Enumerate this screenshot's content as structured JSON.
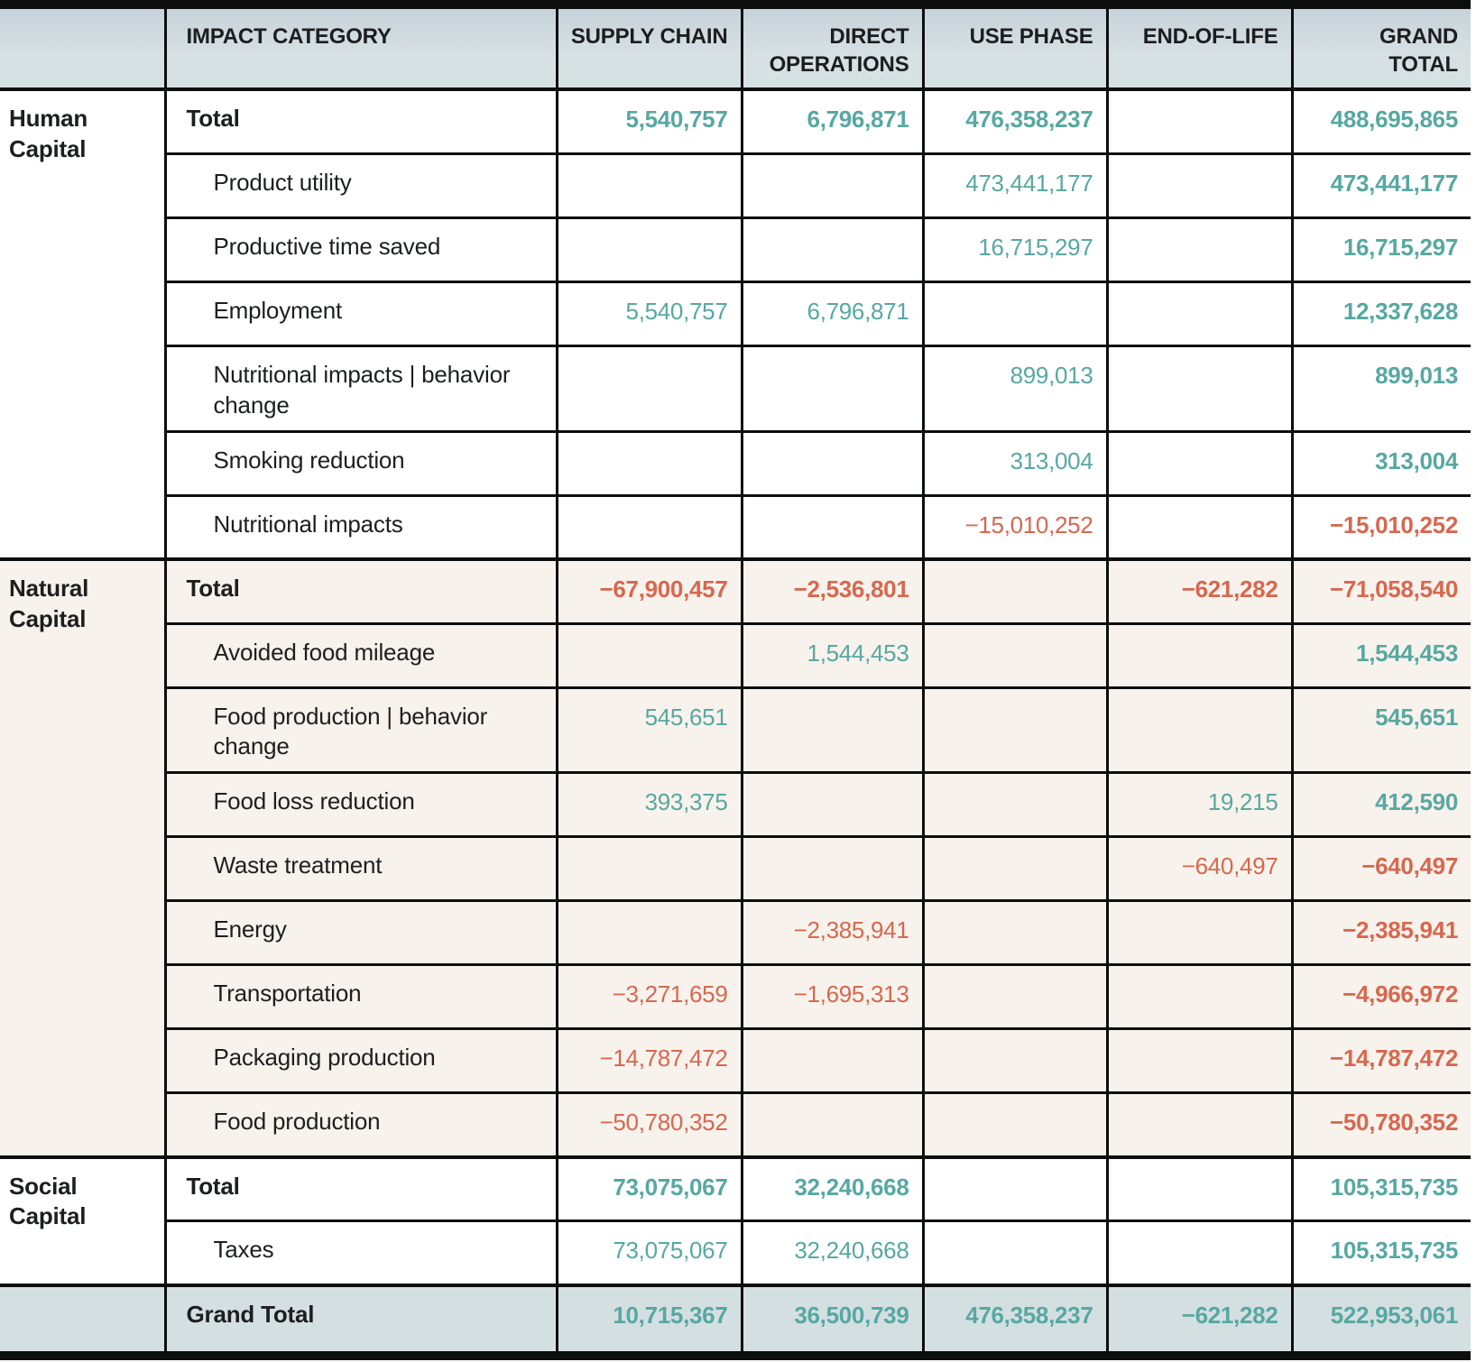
{
  "colors": {
    "positive_value": "#57a8a1",
    "negative_value": "#d6684f",
    "header_bg": "#d2dee2",
    "section_cream_bg": "#f8f2ec",
    "grand_total_row_bg": "#d4dfe2",
    "text": "#1d1f1f",
    "border": "#0d0e0e"
  },
  "table": {
    "columns": [
      "IMPACT CATEGORY",
      "SUPPLY CHAIN",
      "DIRECT OPERATIONS",
      "USE PHASE",
      "END-OF-LIFE",
      "GRAND TOTAL"
    ],
    "sections": [
      {
        "name": "Human Capital",
        "theme": "light",
        "rows": [
          {
            "label": "Total",
            "total": true,
            "values": [
              "5,540,757",
              "6,796,871",
              "476,358,237",
              "",
              "488,695,865"
            ]
          },
          {
            "label": "Product utility",
            "values": [
              "",
              "",
              "473,441,177",
              "",
              "473,441,177"
            ]
          },
          {
            "label": "Productive time saved",
            "values": [
              "",
              "",
              "16,715,297",
              "",
              "16,715,297"
            ]
          },
          {
            "label": "Employment",
            "values": [
              "5,540,757",
              "6,796,871",
              "",
              "",
              "12,337,628"
            ]
          },
          {
            "label": "Nutritional impacts | behavior change",
            "values": [
              "",
              "",
              "899,013",
              "",
              "899,013"
            ]
          },
          {
            "label": "Smoking reduction",
            "values": [
              "",
              "",
              "313,004",
              "",
              "313,004"
            ]
          },
          {
            "label": "Nutritional impacts",
            "values": [
              "",
              "",
              "−15,010,252",
              "",
              "−15,010,252"
            ]
          }
        ]
      },
      {
        "name": "Natural Capital",
        "theme": "cream",
        "rows": [
          {
            "label": "Total",
            "total": true,
            "values": [
              "−67,900,457",
              "−2,536,801",
              "",
              "−621,282",
              "−71,058,540"
            ]
          },
          {
            "label": "Avoided food mileage",
            "values": [
              "",
              "1,544,453",
              "",
              "",
              "1,544,453"
            ]
          },
          {
            "label": "Food production | behavior change",
            "values": [
              "545,651",
              "",
              "",
              "",
              "545,651"
            ]
          },
          {
            "label": "Food loss reduction",
            "values": [
              "393,375",
              "",
              "",
              "19,215",
              "412,590"
            ]
          },
          {
            "label": "Waste treatment",
            "values": [
              "",
              "",
              "",
              "−640,497",
              "−640,497"
            ]
          },
          {
            "label": "Energy",
            "values": [
              "",
              "−2,385,941",
              "",
              "",
              "−2,385,941"
            ]
          },
          {
            "label": "Transportation",
            "values": [
              "−3,271,659",
              "−1,695,313",
              "",
              "",
              "−4,966,972"
            ]
          },
          {
            "label": "Packaging production",
            "values": [
              "−14,787,472",
              "",
              "",
              "",
              "−14,787,472"
            ]
          },
          {
            "label": "Food production",
            "values": [
              "−50,780,352",
              "",
              "",
              "",
              "−50,780,352"
            ]
          }
        ]
      },
      {
        "name": "Social Capital",
        "theme": "light",
        "rows": [
          {
            "label": "Total",
            "total": true,
            "values": [
              "73,075,067",
              "32,240,668",
              "",
              "",
              "105,315,735"
            ]
          },
          {
            "label": "Taxes",
            "values": [
              "73,075,067",
              "32,240,668",
              "",
              "",
              "105,315,735"
            ]
          }
        ]
      }
    ],
    "grand_total": {
      "label": "Grand Total",
      "values": [
        "10,715,367",
        "36,500,739",
        "476,358,237",
        "−621,282",
        "522,953,061"
      ]
    }
  }
}
